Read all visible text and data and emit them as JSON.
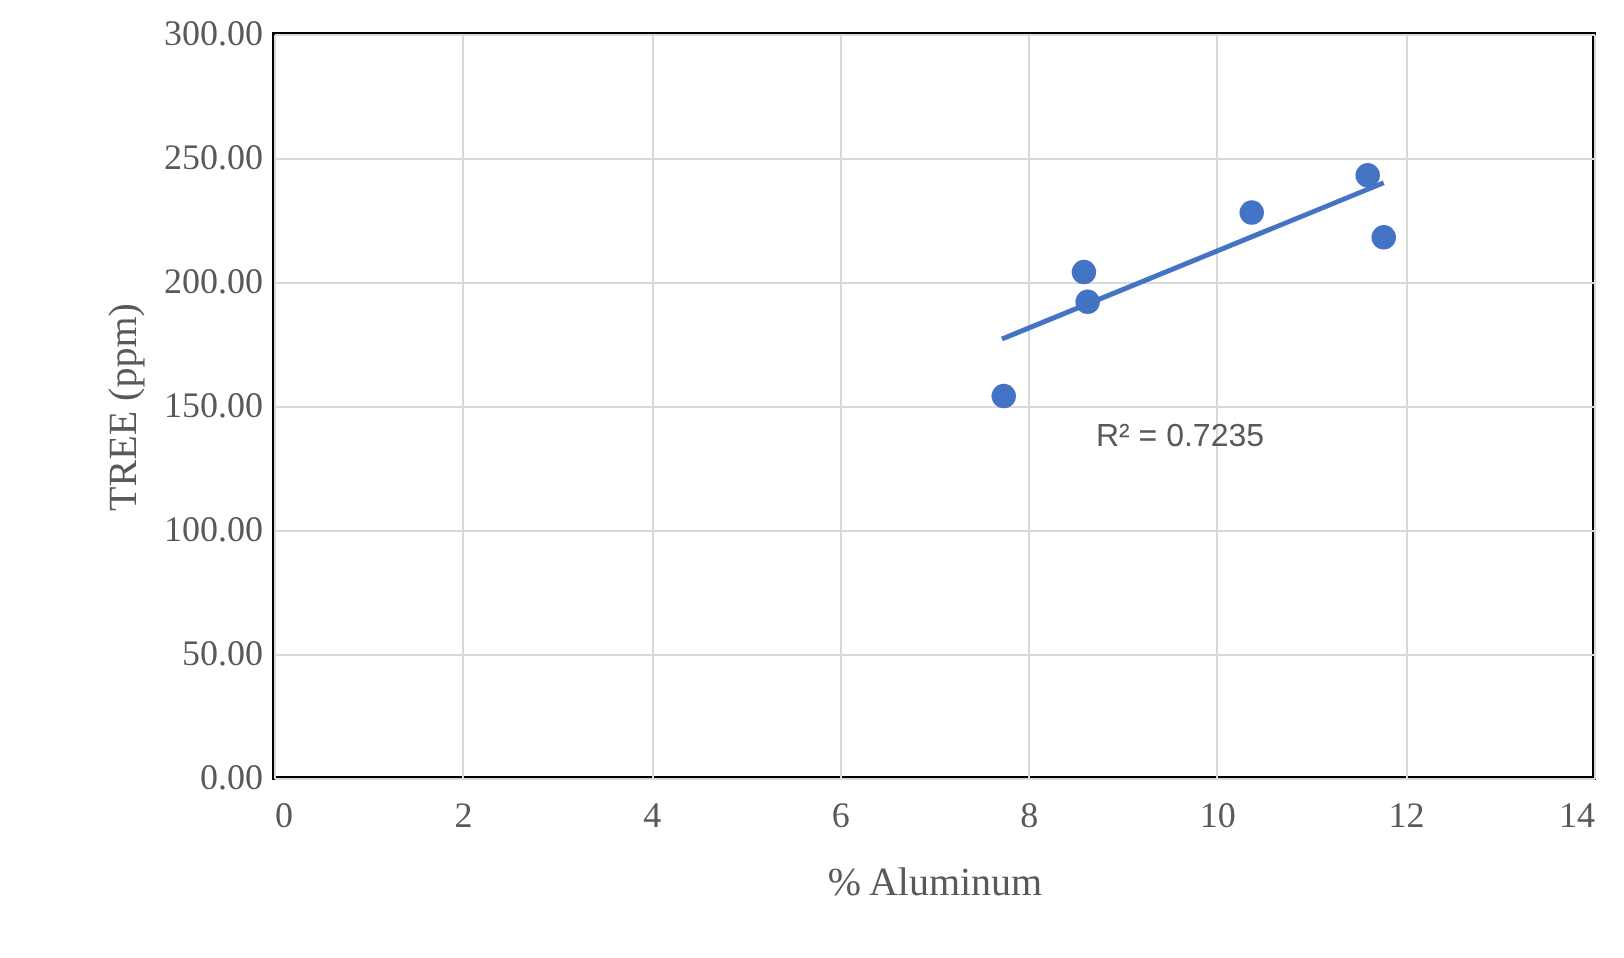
{
  "chart_data": {
    "type": "scatter",
    "xlabel": "% Aluminum",
    "ylabel": "TREE (ppm)",
    "xlim": [
      0,
      14
    ],
    "xticks": [
      0,
      2,
      4,
      6,
      8,
      10,
      12,
      14
    ],
    "ylim": [
      0,
      300
    ],
    "yticks": [
      {
        "value": 0,
        "label": "0.00"
      },
      {
        "value": 50,
        "label": "50.00"
      },
      {
        "value": 100,
        "label": "100.00"
      },
      {
        "value": 150,
        "label": "150.00"
      },
      {
        "value": 200,
        "label": "200.00"
      },
      {
        "value": 250,
        "label": "250.00"
      },
      {
        "value": 300,
        "label": "300.00"
      }
    ],
    "grid": true,
    "series": [
      {
        "color": "#4472c4",
        "marker": "circle",
        "x": [
          7.74,
          8.59,
          8.63,
          10.37,
          11.6,
          11.77
        ],
        "values": [
          154,
          204,
          192,
          228,
          243,
          218
        ]
      },
      {
        "type": "line",
        "color": "#4472c4",
        "x": [
          7.72,
          11.77
        ],
        "values": [
          177,
          240
        ]
      }
    ],
    "annotations": [
      "R² = 0.7235"
    ]
  }
}
